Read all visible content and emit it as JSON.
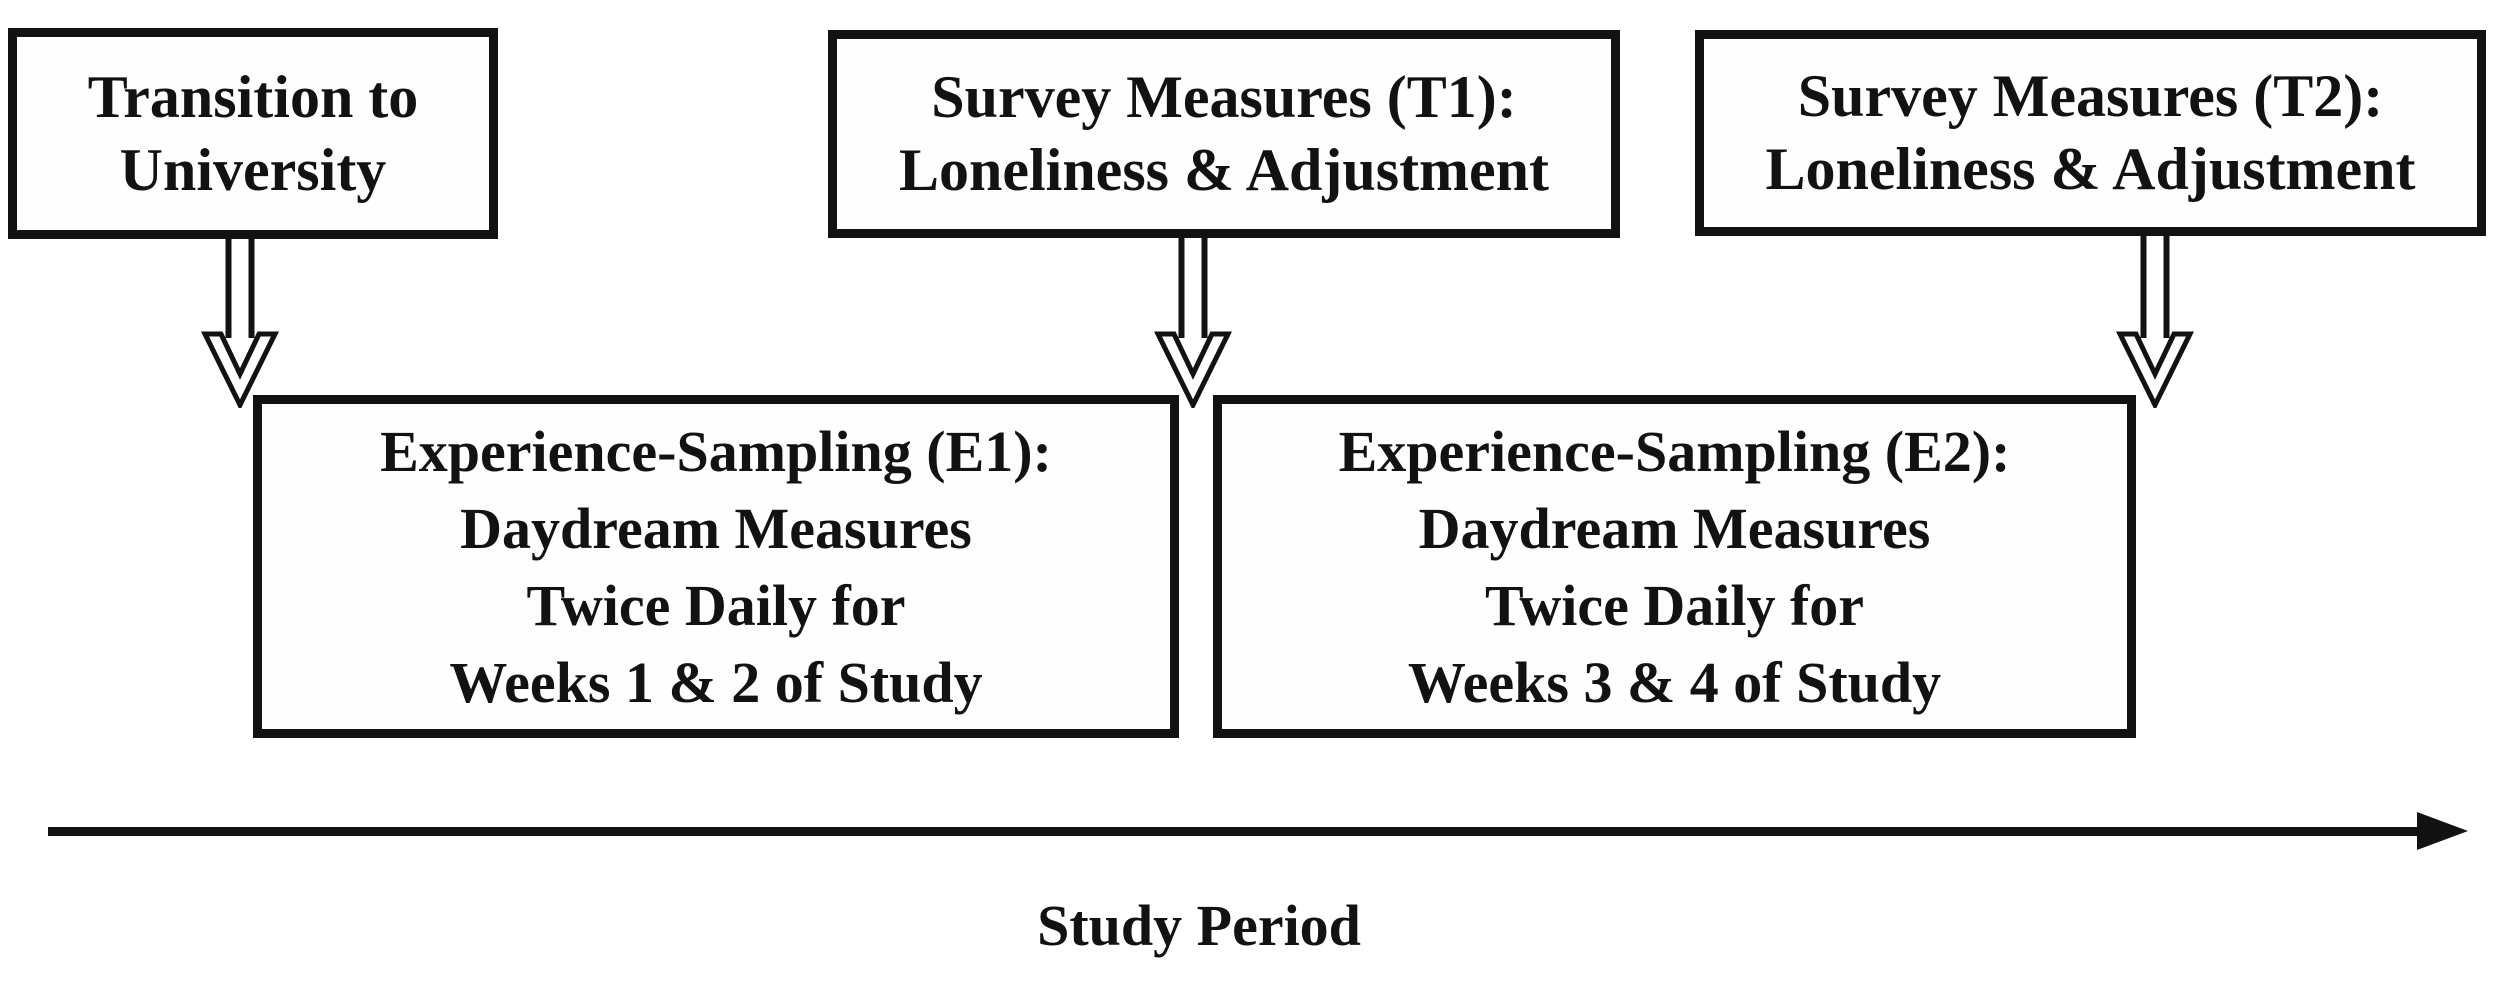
{
  "figure": {
    "top_boxes": [
      {
        "lines": [
          "Transition to",
          "University"
        ]
      },
      {
        "lines": [
          "Survey Measures (T1):",
          "Loneliness &amp; Adjustment"
        ]
      },
      {
        "lines": [
          "Survey Measures (T2):",
          "Loneliness &amp; Adjustment"
        ]
      }
    ],
    "bottom_boxes": [
      {
        "lines": [
          "Experience-Sampling (E1):",
          "Daydream Measures",
          "Twice Daily for",
          "Weeks 1 &amp; 2 of Study"
        ]
      },
      {
        "lines": [
          "Experience-Sampling (E2):",
          "Daydream Measures",
          "Twice Daily for",
          "Weeks 3 &amp; 4 of Study"
        ]
      }
    ],
    "timeline": {
      "label": "Study Period"
    },
    "colors": {
      "ink": "#121212",
      "background": "#ffffff"
    }
  }
}
